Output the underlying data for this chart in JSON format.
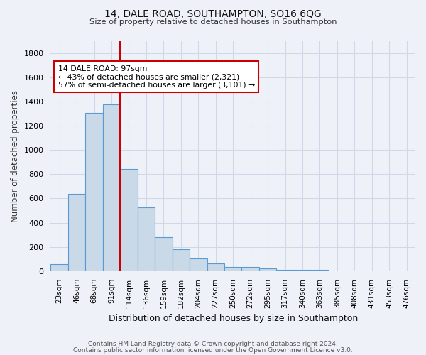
{
  "title_line1": "14, DALE ROAD, SOUTHAMPTON, SO16 6QG",
  "title_line2": "Size of property relative to detached houses in Southampton",
  "xlabel": "Distribution of detached houses by size in Southampton",
  "ylabel": "Number of detached properties",
  "bar_categories": [
    "23sqm",
    "46sqm",
    "68sqm",
    "91sqm",
    "114sqm",
    "136sqm",
    "159sqm",
    "182sqm",
    "204sqm",
    "227sqm",
    "250sqm",
    "272sqm",
    "295sqm",
    "317sqm",
    "340sqm",
    "363sqm",
    "385sqm",
    "408sqm",
    "431sqm",
    "453sqm",
    "476sqm"
  ],
  "bar_values": [
    55,
    640,
    1305,
    1375,
    840,
    525,
    280,
    180,
    105,
    65,
    35,
    35,
    25,
    12,
    10,
    12,
    0,
    0,
    0,
    0,
    0
  ],
  "bar_color": "#c9d9e8",
  "bar_edge_color": "#5b9bd5",
  "grid_color": "#d0d8e8",
  "bg_color": "#eef2f8",
  "vline_color": "#cc0000",
  "annotation_text": "14 DALE ROAD: 97sqm\n← 43% of detached houses are smaller (2,321)\n57% of semi-detached houses are larger (3,101) →",
  "annotation_box_color": "#ffffff",
  "annotation_box_edge": "#cc0000",
  "footnote_line1": "Contains HM Land Registry data © Crown copyright and database right 2024.",
  "footnote_line2": "Contains public sector information licensed under the Open Government Licence v3.0.",
  "ylim": [
    0,
    1900
  ],
  "yticks": [
    0,
    200,
    400,
    600,
    800,
    1000,
    1200,
    1400,
    1600,
    1800
  ]
}
